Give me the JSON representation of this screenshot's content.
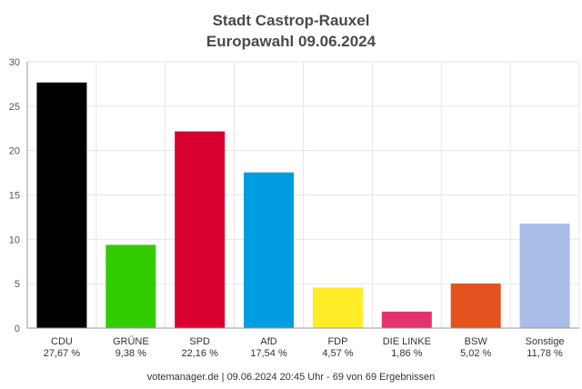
{
  "chart_data": {
    "type": "bar",
    "title": "Stadt Castrop-Rauxel",
    "subtitle": "Europawahl 09.06.2024",
    "categories": [
      "CDU",
      "GRÜNE",
      "SPD",
      "AfD",
      "FDP",
      "DIE LINKE",
      "BSW",
      "Sonstige"
    ],
    "values": [
      27.67,
      9.38,
      22.16,
      17.54,
      4.57,
      1.86,
      5.02,
      11.78
    ],
    "value_labels": [
      "27,67 %",
      "9,38 %",
      "22,16 %",
      "17,54 %",
      "4,57 %",
      "1,86 %",
      "5,02 %",
      "11,78 %"
    ],
    "colors": [
      "#000000",
      "#33cc00",
      "#d7002e",
      "#009ee0",
      "#ffed27",
      "#e3346f",
      "#e2531f",
      "#a9bde6"
    ],
    "ylim": [
      0,
      30
    ],
    "yticks": [
      "0",
      "5",
      "10",
      "15",
      "20",
      "25",
      "30"
    ],
    "grid": true
  },
  "footer": "votemanager.de | 09.06.2024 20:45 Uhr - 69 von 69 Ergebnissen"
}
